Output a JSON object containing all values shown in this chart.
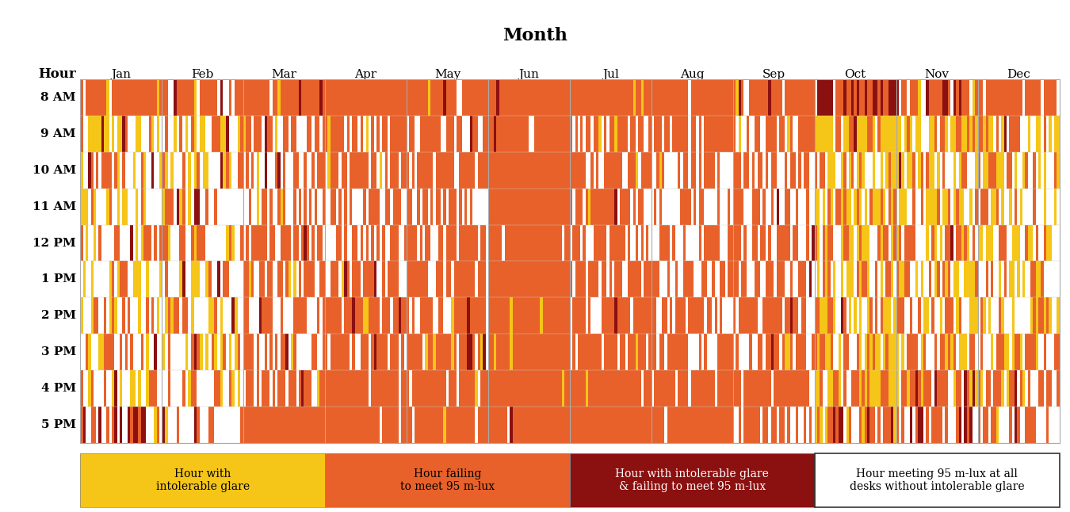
{
  "title": "Month",
  "ylabel": "Hour",
  "months": [
    "Jan",
    "Feb",
    "Mar",
    "Apr",
    "May",
    "Jun",
    "Jul",
    "Aug",
    "Sep",
    "Oct",
    "Nov",
    "Dec"
  ],
  "hours": [
    "8 AM",
    "9 AM",
    "10 AM",
    "11 AM",
    "12 PM",
    "1 PM",
    "2 PM",
    "3 PM",
    "4 PM",
    "5 PM"
  ],
  "days_per_month": [
    31,
    28,
    31,
    30,
    31,
    30,
    31,
    31,
    30,
    31,
    30,
    31
  ],
  "colors": {
    "yellow": "#F5C518",
    "orange": "#E8612A",
    "dark_red": "#8B1010",
    "white": "#FFFFFF"
  },
  "legend": [
    {
      "color": "#F5C518",
      "label": "Hour with\nintolerable glare",
      "text_color": "black"
    },
    {
      "color": "#E8612A",
      "label": "Hour failing\nto meet 95 m-lux",
      "text_color": "black"
    },
    {
      "color": "#8B1010",
      "label": "Hour with intolerable glare\n& failing to meet 95 m-lux",
      "text_color": "white"
    },
    {
      "color": "#FFFFFF",
      "label": "Hour meeting 95 m-lux at all\ndesks without intolerable glare",
      "text_color": "black"
    }
  ],
  "background_color": "#FFFFFF",
  "seed": 42,
  "cell_data": {
    "Jan": {
      "8 AM": [
        0.05,
        0.87,
        0.02,
        0.06
      ],
      "9 AM": [
        0.38,
        0.28,
        0.04,
        0.3
      ],
      "10 AM": [
        0.3,
        0.22,
        0.02,
        0.46
      ],
      "11 AM": [
        0.25,
        0.18,
        0.02,
        0.55
      ],
      "12 PM": [
        0.2,
        0.22,
        0.02,
        0.56
      ],
      "1 PM": [
        0.32,
        0.18,
        0.02,
        0.48
      ],
      "2 PM": [
        0.28,
        0.22,
        0.02,
        0.48
      ],
      "3 PM": [
        0.22,
        0.22,
        0.02,
        0.54
      ],
      "4 PM": [
        0.32,
        0.22,
        0.02,
        0.44
      ],
      "5 PM": [
        0.04,
        0.22,
        0.22,
        0.52
      ]
    },
    "Feb": {
      "8 AM": [
        0.04,
        0.68,
        0.16,
        0.12
      ],
      "9 AM": [
        0.36,
        0.28,
        0.06,
        0.3
      ],
      "10 AM": [
        0.26,
        0.28,
        0.02,
        0.44
      ],
      "11 AM": [
        0.2,
        0.28,
        0.02,
        0.5
      ],
      "12 PM": [
        0.16,
        0.32,
        0.02,
        0.5
      ],
      "1 PM": [
        0.26,
        0.28,
        0.02,
        0.44
      ],
      "2 PM": [
        0.2,
        0.32,
        0.02,
        0.46
      ],
      "3 PM": [
        0.16,
        0.32,
        0.02,
        0.5
      ],
      "4 PM": [
        0.2,
        0.32,
        0.02,
        0.46
      ],
      "5 PM": [
        0.04,
        0.28,
        0.22,
        0.46
      ]
    },
    "Mar": {
      "8 AM": [
        0.02,
        0.82,
        0.08,
        0.08
      ],
      "9 AM": [
        0.08,
        0.52,
        0.02,
        0.38
      ],
      "10 AM": [
        0.04,
        0.52,
        0.02,
        0.42
      ],
      "11 AM": [
        0.04,
        0.52,
        0.02,
        0.42
      ],
      "12 PM": [
        0.04,
        0.52,
        0.02,
        0.42
      ],
      "1 PM": [
        0.04,
        0.52,
        0.02,
        0.42
      ],
      "2 PM": [
        0.04,
        0.52,
        0.02,
        0.42
      ],
      "3 PM": [
        0.04,
        0.58,
        0.02,
        0.36
      ],
      "4 PM": [
        0.04,
        0.74,
        0.02,
        0.2
      ],
      "5 PM": [
        0.02,
        0.92,
        0.02,
        0.04
      ]
    },
    "Apr": {
      "8 AM": [
        0.02,
        0.92,
        0.02,
        0.04
      ],
      "9 AM": [
        0.02,
        0.68,
        0.02,
        0.28
      ],
      "10 AM": [
        0.02,
        0.58,
        0.02,
        0.38
      ],
      "11 AM": [
        0.02,
        0.54,
        0.02,
        0.42
      ],
      "12 PM": [
        0.02,
        0.54,
        0.02,
        0.42
      ],
      "1 PM": [
        0.02,
        0.58,
        0.02,
        0.38
      ],
      "2 PM": [
        0.02,
        0.58,
        0.02,
        0.38
      ],
      "3 PM": [
        0.02,
        0.64,
        0.02,
        0.32
      ],
      "4 PM": [
        0.02,
        0.84,
        0.02,
        0.12
      ],
      "5 PM": [
        0.02,
        0.94,
        0.02,
        0.02
      ]
    },
    "May": {
      "8 AM": [
        0.02,
        0.92,
        0.02,
        0.04
      ],
      "9 AM": [
        0.02,
        0.7,
        0.02,
        0.26
      ],
      "10 AM": [
        0.02,
        0.64,
        0.02,
        0.32
      ],
      "11 AM": [
        0.02,
        0.58,
        0.02,
        0.38
      ],
      "12 PM": [
        0.02,
        0.62,
        0.02,
        0.34
      ],
      "1 PM": [
        0.02,
        0.64,
        0.02,
        0.32
      ],
      "2 PM": [
        0.02,
        0.66,
        0.02,
        0.3
      ],
      "3 PM": [
        0.02,
        0.74,
        0.02,
        0.22
      ],
      "4 PM": [
        0.02,
        0.88,
        0.02,
        0.08
      ],
      "5 PM": [
        0.02,
        0.94,
        0.02,
        0.02
      ]
    },
    "Jun": {
      "8 AM": [
        0.01,
        0.97,
        0.01,
        0.01
      ],
      "9 AM": [
        0.01,
        0.97,
        0.01,
        0.01
      ],
      "10 AM": [
        0.01,
        0.97,
        0.01,
        0.01
      ],
      "11 AM": [
        0.01,
        0.97,
        0.01,
        0.01
      ],
      "12 PM": [
        0.02,
        0.96,
        0.01,
        0.01
      ],
      "1 PM": [
        0.02,
        0.96,
        0.01,
        0.01
      ],
      "2 PM": [
        0.02,
        0.96,
        0.01,
        0.01
      ],
      "3 PM": [
        0.02,
        0.96,
        0.01,
        0.01
      ],
      "4 PM": [
        0.01,
        0.97,
        0.01,
        0.01
      ],
      "5 PM": [
        0.01,
        0.97,
        0.01,
        0.01
      ]
    },
    "Jul": {
      "8 AM": [
        0.01,
        0.97,
        0.01,
        0.01
      ],
      "9 AM": [
        0.04,
        0.62,
        0.01,
        0.33
      ],
      "10 AM": [
        0.02,
        0.68,
        0.01,
        0.29
      ],
      "11 AM": [
        0.02,
        0.66,
        0.01,
        0.31
      ],
      "12 PM": [
        0.02,
        0.66,
        0.01,
        0.31
      ],
      "1 PM": [
        0.02,
        0.68,
        0.01,
        0.29
      ],
      "2 PM": [
        0.02,
        0.68,
        0.01,
        0.29
      ],
      "3 PM": [
        0.02,
        0.78,
        0.01,
        0.19
      ],
      "4 PM": [
        0.01,
        0.92,
        0.01,
        0.06
      ],
      "5 PM": [
        0.01,
        0.97,
        0.01,
        0.01
      ]
    },
    "Aug": {
      "8 AM": [
        0.01,
        0.95,
        0.01,
        0.03
      ],
      "9 AM": [
        0.04,
        0.48,
        0.01,
        0.47
      ],
      "10 AM": [
        0.02,
        0.44,
        0.01,
        0.53
      ],
      "11 AM": [
        0.02,
        0.4,
        0.01,
        0.57
      ],
      "12 PM": [
        0.02,
        0.44,
        0.01,
        0.53
      ],
      "1 PM": [
        0.02,
        0.48,
        0.01,
        0.49
      ],
      "2 PM": [
        0.02,
        0.54,
        0.01,
        0.43
      ],
      "3 PM": [
        0.02,
        0.64,
        0.01,
        0.33
      ],
      "4 PM": [
        0.01,
        0.84,
        0.01,
        0.14
      ],
      "5 PM": [
        0.01,
        0.97,
        0.01,
        0.01
      ]
    },
    "Sep": {
      "8 AM": [
        0.02,
        0.9,
        0.02,
        0.06
      ],
      "9 AM": [
        0.04,
        0.54,
        0.02,
        0.4
      ],
      "10 AM": [
        0.02,
        0.48,
        0.02,
        0.48
      ],
      "11 AM": [
        0.02,
        0.46,
        0.02,
        0.5
      ],
      "12 PM": [
        0.02,
        0.5,
        0.02,
        0.46
      ],
      "1 PM": [
        0.02,
        0.54,
        0.02,
        0.42
      ],
      "2 PM": [
        0.02,
        0.56,
        0.02,
        0.4
      ],
      "3 PM": [
        0.02,
        0.64,
        0.02,
        0.32
      ],
      "4 PM": [
        0.02,
        0.84,
        0.02,
        0.12
      ],
      "5 PM": [
        0.02,
        0.34,
        0.02,
        0.62
      ]
    },
    "Oct": {
      "8 AM": [
        0.02,
        0.48,
        0.34,
        0.16
      ],
      "9 AM": [
        0.52,
        0.22,
        0.02,
        0.24
      ],
      "10 AM": [
        0.52,
        0.22,
        0.02,
        0.24
      ],
      "11 AM": [
        0.42,
        0.28,
        0.02,
        0.28
      ],
      "12 PM": [
        0.36,
        0.32,
        0.02,
        0.3
      ],
      "1 PM": [
        0.42,
        0.28,
        0.02,
        0.28
      ],
      "2 PM": [
        0.42,
        0.3,
        0.02,
        0.26
      ],
      "3 PM": [
        0.36,
        0.36,
        0.02,
        0.26
      ],
      "4 PM": [
        0.42,
        0.36,
        0.02,
        0.2
      ],
      "5 PM": [
        0.32,
        0.32,
        0.16,
        0.2
      ]
    },
    "Nov": {
      "8 AM": [
        0.04,
        0.52,
        0.18,
        0.26
      ],
      "9 AM": [
        0.42,
        0.28,
        0.06,
        0.24
      ],
      "10 AM": [
        0.42,
        0.26,
        0.02,
        0.3
      ],
      "11 AM": [
        0.36,
        0.28,
        0.02,
        0.34
      ],
      "12 PM": [
        0.32,
        0.32,
        0.02,
        0.34
      ],
      "1 PM": [
        0.36,
        0.28,
        0.02,
        0.34
      ],
      "2 PM": [
        0.36,
        0.3,
        0.02,
        0.32
      ],
      "3 PM": [
        0.32,
        0.36,
        0.02,
        0.3
      ],
      "4 PM": [
        0.2,
        0.38,
        0.1,
        0.32
      ],
      "5 PM": [
        0.02,
        0.32,
        0.22,
        0.44
      ]
    },
    "Dec": {
      "8 AM": [
        0.02,
        0.74,
        0.06,
        0.18
      ],
      "9 AM": [
        0.3,
        0.34,
        0.06,
        0.3
      ],
      "10 AM": [
        0.28,
        0.28,
        0.02,
        0.42
      ],
      "11 AM": [
        0.26,
        0.28,
        0.02,
        0.44
      ],
      "12 PM": [
        0.22,
        0.34,
        0.02,
        0.42
      ],
      "1 PM": [
        0.28,
        0.28,
        0.02,
        0.42
      ],
      "2 PM": [
        0.26,
        0.3,
        0.02,
        0.42
      ],
      "3 PM": [
        0.2,
        0.36,
        0.02,
        0.42
      ],
      "4 PM": [
        0.18,
        0.4,
        0.06,
        0.36
      ],
      "5 PM": [
        0.02,
        0.28,
        0.12,
        0.58
      ]
    }
  }
}
